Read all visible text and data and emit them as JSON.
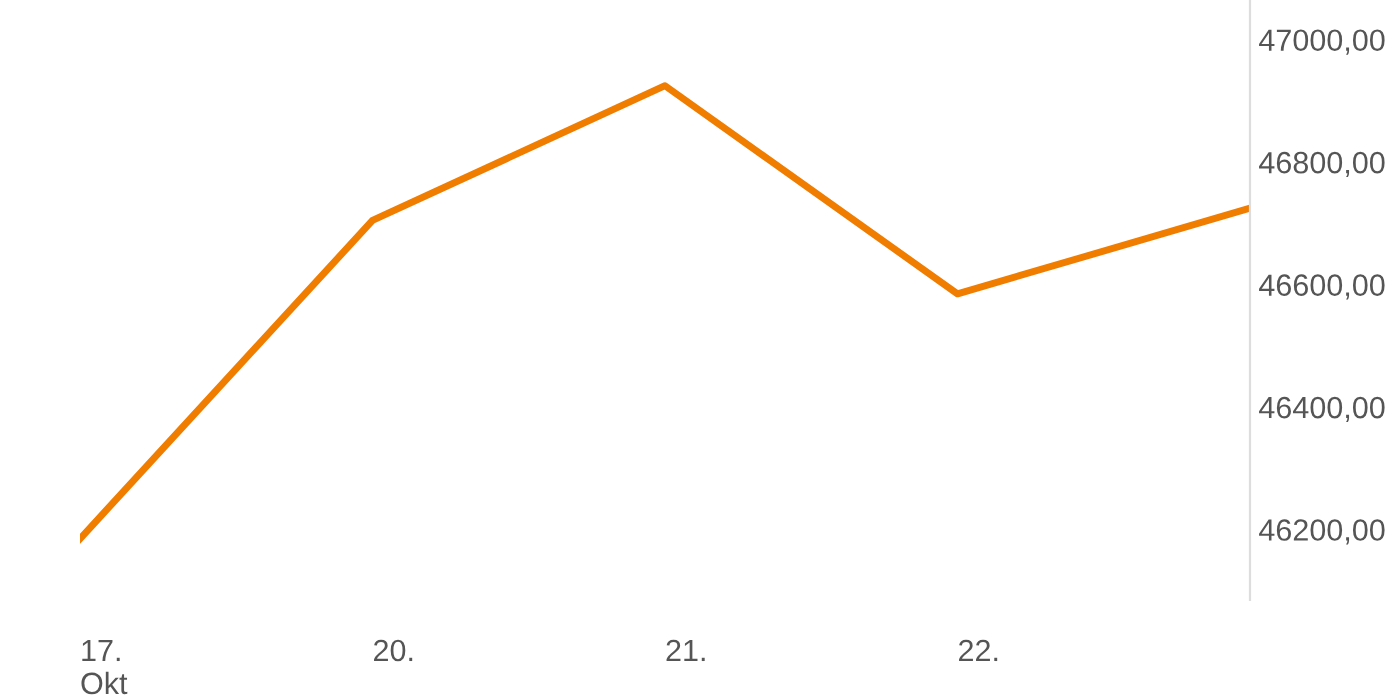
{
  "chart_data": {
    "type": "line",
    "categories": [
      "17.\nOkt",
      "20.",
      "21.",
      "22.",
      null
    ],
    "series": [
      {
        "color": "#f07d00",
        "values": [
          46190,
          46710,
          46930,
          46590,
          46730
        ]
      }
    ],
    "ylim": [
      46090,
      47070
    ],
    "yticks": [
      {
        "value": 46200,
        "label": "46200,00"
      },
      {
        "value": 46400,
        "label": "46400,00"
      },
      {
        "value": 46600,
        "label": "46600,00"
      },
      {
        "value": 46800,
        "label": "46800,00"
      },
      {
        "value": 47000,
        "label": "47000,00"
      }
    ],
    "grid": false,
    "legend": false,
    "marker": "none",
    "line_style": "solid"
  }
}
